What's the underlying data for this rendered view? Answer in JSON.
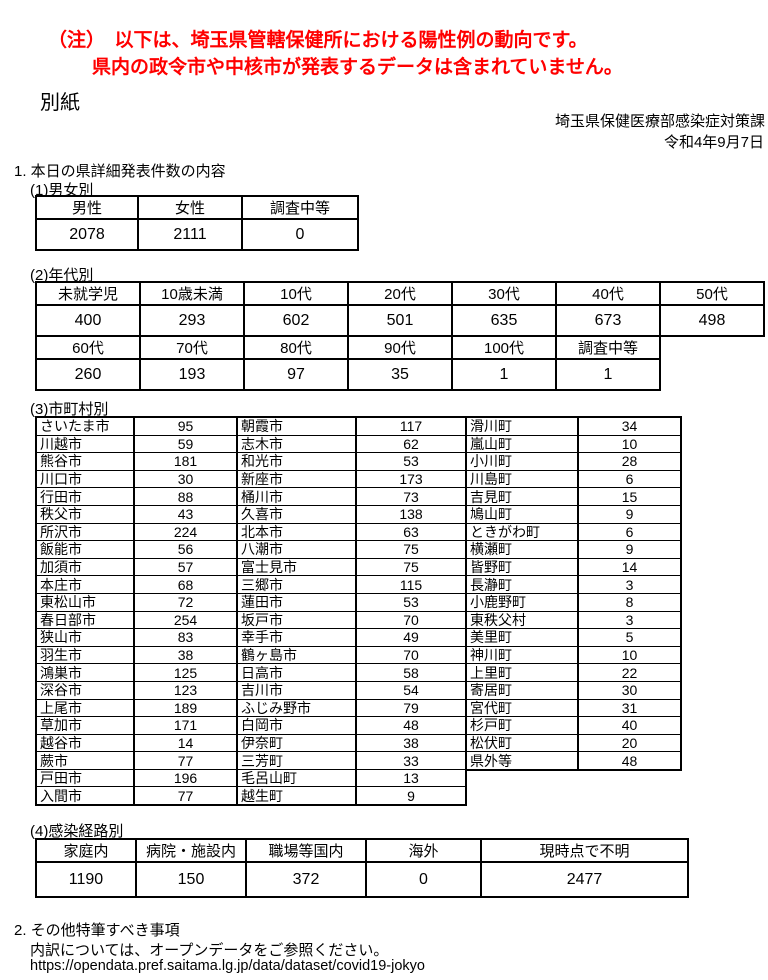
{
  "note": {
    "line1": "（注）　以下は、埼玉県管轄保健所における陽性例の動向です。",
    "line2": "県内の政令市や中核市が発表するデータは含まれていません。",
    "color": "#ff0000"
  },
  "attachment_label": "別紙",
  "header": {
    "department": "埼玉県保健医療部感染症対策課",
    "date": "令和4年9月7日"
  },
  "section1": {
    "title": "1. 本日の県詳細発表件数の内容",
    "gender": {
      "label": "(1)男女別",
      "rows": [
        [
          "男性",
          "女性",
          "調査中等"
        ],
        [
          "2078",
          "2111",
          "0"
        ]
      ]
    },
    "age": {
      "label": "(2)年代別",
      "upper": [
        [
          "未就学児",
          "10歳未満",
          "10代",
          "20代",
          "30代",
          "40代",
          "50代"
        ],
        [
          "400",
          "293",
          "602",
          "501",
          "635",
          "673",
          "498"
        ]
      ],
      "lower": [
        [
          "60代",
          "70代",
          "80代",
          "90代",
          "100代",
          "調査中等"
        ],
        [
          "260",
          "193",
          "97",
          "35",
          "1",
          "1"
        ]
      ]
    },
    "municipality": {
      "label": "(3)市町村別",
      "col1": [
        [
          "さいたま市",
          "95"
        ],
        [
          "川越市",
          "59"
        ],
        [
          "熊谷市",
          "181"
        ],
        [
          "川口市",
          "30"
        ],
        [
          "行田市",
          "88"
        ],
        [
          "秩父市",
          "43"
        ],
        [
          "所沢市",
          "224"
        ],
        [
          "飯能市",
          "56"
        ],
        [
          "加須市",
          "57"
        ],
        [
          "本庄市",
          "68"
        ],
        [
          "東松山市",
          "72"
        ],
        [
          "春日部市",
          "254"
        ],
        [
          "狭山市",
          "83"
        ],
        [
          "羽生市",
          "38"
        ],
        [
          "鴻巣市",
          "125"
        ],
        [
          "深谷市",
          "123"
        ],
        [
          "上尾市",
          "189"
        ],
        [
          "草加市",
          "171"
        ],
        [
          "越谷市",
          "14"
        ],
        [
          "蕨市",
          "77"
        ],
        [
          "戸田市",
          "196"
        ],
        [
          "入間市",
          "77"
        ]
      ],
      "col2": [
        [
          "朝霞市",
          "117"
        ],
        [
          "志木市",
          "62"
        ],
        [
          "和光市",
          "53"
        ],
        [
          "新座市",
          "173"
        ],
        [
          "桶川市",
          "73"
        ],
        [
          "久喜市",
          "138"
        ],
        [
          "北本市",
          "63"
        ],
        [
          "八潮市",
          "75"
        ],
        [
          "富士見市",
          "75"
        ],
        [
          "三郷市",
          "115"
        ],
        [
          "蓮田市",
          "53"
        ],
        [
          "坂戸市",
          "70"
        ],
        [
          "幸手市",
          "49"
        ],
        [
          "鶴ヶ島市",
          "70"
        ],
        [
          "日高市",
          "58"
        ],
        [
          "吉川市",
          "54"
        ],
        [
          "ふじみ野市",
          "79"
        ],
        [
          "白岡市",
          "48"
        ],
        [
          "伊奈町",
          "38"
        ],
        [
          "三芳町",
          "33"
        ],
        [
          "毛呂山町",
          "13"
        ],
        [
          "越生町",
          "9"
        ]
      ],
      "col3": [
        [
          "滑川町",
          "34"
        ],
        [
          "嵐山町",
          "10"
        ],
        [
          "小川町",
          "28"
        ],
        [
          "川島町",
          "6"
        ],
        [
          "吉見町",
          "15"
        ],
        [
          "鳩山町",
          "9"
        ],
        [
          "ときがわ町",
          "6"
        ],
        [
          "横瀬町",
          "9"
        ],
        [
          "皆野町",
          "14"
        ],
        [
          "長瀞町",
          "3"
        ],
        [
          "小鹿野町",
          "8"
        ],
        [
          "東秩父村",
          "3"
        ],
        [
          "美里町",
          "5"
        ],
        [
          "神川町",
          "10"
        ],
        [
          "上里町",
          "22"
        ],
        [
          "寄居町",
          "30"
        ],
        [
          "宮代町",
          "31"
        ],
        [
          "杉戸町",
          "40"
        ],
        [
          "松伏町",
          "20"
        ],
        [
          "県外等",
          "48"
        ]
      ]
    },
    "route": {
      "label": "(4)感染経路別",
      "rows": [
        [
          "家庭内",
          "病院・施設内",
          "職場等国内",
          "海外",
          "現時点で不明"
        ],
        [
          "1190",
          "150",
          "372",
          "0",
          "2477"
        ]
      ]
    }
  },
  "section2": {
    "title": "2. その他特筆すべき事項",
    "body": "内訳については、オープンデータをご参照ください。",
    "url": "https://opendata.pref.saitama.lg.jp/data/dataset/covid19-jokyo"
  }
}
